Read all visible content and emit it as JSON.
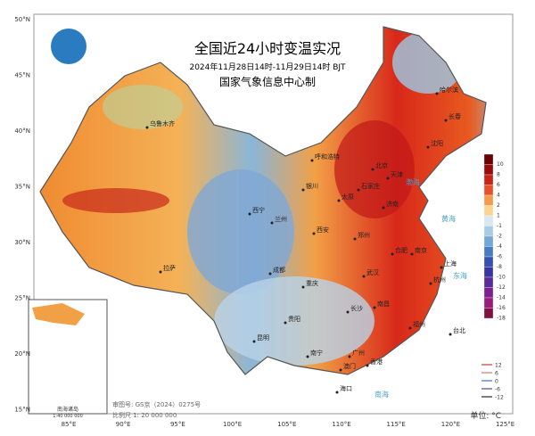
{
  "header": {
    "title": "全国近24小时变温实况",
    "subtitle": "2024年11月28日14时-11月29日14时 BJT",
    "issuer": "国家气象信息中心制"
  },
  "lat_labels": [
    "50°N",
    "45°N",
    "40°N",
    "35°N",
    "30°N",
    "25°N",
    "20°N",
    "15°N"
  ],
  "lon_labels": [
    "85°E",
    "90°E",
    "95°E",
    "100°E",
    "105°E",
    "110°E",
    "115°E",
    "120°E",
    "125°E"
  ],
  "color_legend": [
    "10",
    "8",
    "6",
    "4",
    "2",
    "1",
    "-1",
    "-2",
    "-4",
    "-6",
    "-8",
    "-10",
    "-12",
    "-14",
    "-16",
    "-18"
  ],
  "line_legend": [
    "12",
    "6",
    "0",
    "-6",
    "-12"
  ],
  "cities": [
    "哈尔滨",
    "长春",
    "沈阳",
    "北京",
    "天津",
    "石家庄",
    "济南",
    "太原",
    "呼和浩特",
    "郑州",
    "西安",
    "银川",
    "兰州",
    "西宁",
    "乌鲁木齐",
    "拉萨",
    "成都",
    "重庆",
    "武汉",
    "合肥",
    "南京",
    "上海",
    "杭州",
    "南昌",
    "长沙",
    "福州",
    "台北",
    "贵阳",
    "昆明",
    "南宁",
    "广州",
    "香港",
    "澳门",
    "海口"
  ],
  "seas": [
    "渤海",
    "黄海",
    "东海",
    "南海"
  ],
  "inset": {
    "title": "南海诸岛",
    "scale": "1:40 000 000"
  },
  "footer": {
    "approval": "审图号: GS京（2024）0275号",
    "scale": "比例尺 1: 20 000 000",
    "unit": "单位: °C"
  }
}
